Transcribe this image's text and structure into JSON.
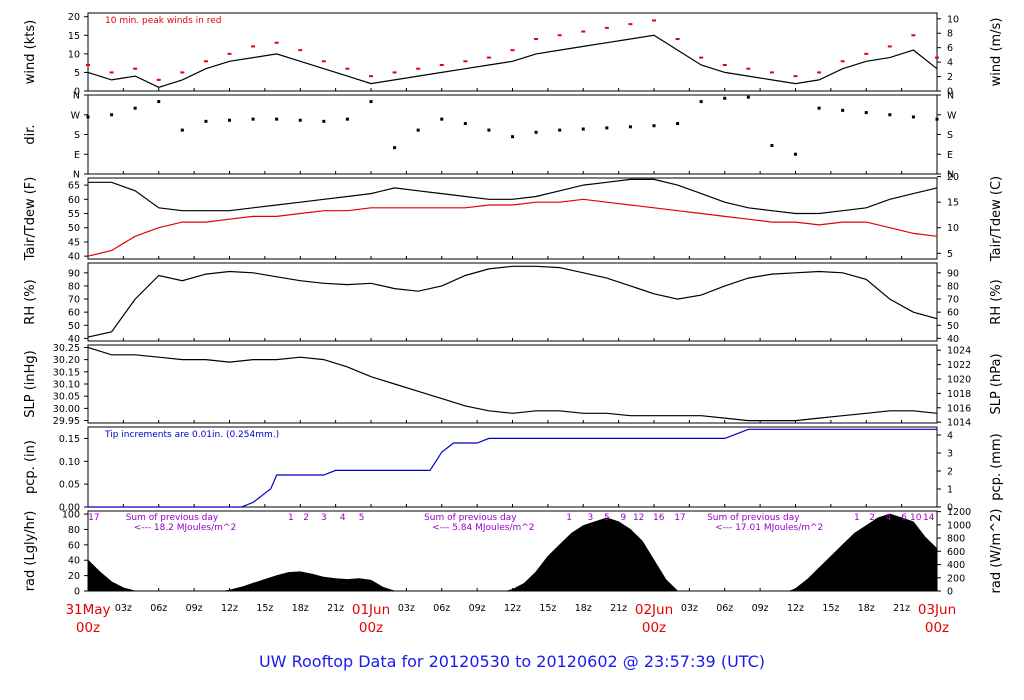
{
  "footer": "UW Rooftop Data for 20120530  to  20120602 @ 23:57:39  (UTC)",
  "colors": {
    "red": "#e60000",
    "blue": "#0000cc",
    "purple": "#9900cc",
    "footer_blue": "#1a1aee"
  },
  "x_axis": {
    "hour_ticks": [
      "03z",
      "06z",
      "09z",
      "12z",
      "15z",
      "18z",
      "21z",
      "01Jun",
      "03z",
      "06z",
      "09z",
      "12z",
      "15z",
      "18z",
      "21z",
      "02Jun",
      "03z",
      "06z",
      "09z",
      "12z",
      "15z",
      "18z",
      "21z",
      "03Jun"
    ],
    "day_ticks": [
      {
        "top": "31May",
        "bottom": "00z",
        "hour": 0
      },
      {
        "top": "01Jun",
        "bottom": "00z",
        "hour": 24
      },
      {
        "top": "02Jun",
        "bottom": "00z",
        "hour": 48
      },
      {
        "top": "03Jun",
        "bottom": "00z",
        "hour": 72
      }
    ],
    "range_hours": [
      0,
      72
    ]
  },
  "chart_data": [
    {
      "type": "line",
      "id": "wind",
      "ylabel_left": "wind (kts)",
      "ylabel_right": "wind (m/s)",
      "yticks_left": [
        "0",
        "5",
        "10",
        "15",
        "20"
      ],
      "yticks_right": [
        "0",
        "2",
        "4",
        "6",
        "8",
        "10"
      ],
      "ylim": [
        0,
        21
      ],
      "annotation": "10 min. peak winds in red",
      "series": [
        {
          "role": "speed",
          "color": "#000000",
          "x": [
            0,
            2,
            4,
            6,
            8,
            10,
            12,
            14,
            16,
            18,
            20,
            22,
            24,
            26,
            28,
            30,
            32,
            34,
            36,
            38,
            40,
            42,
            44,
            46,
            48,
            50,
            52,
            54,
            56,
            58,
            60,
            62,
            64,
            66,
            68,
            70,
            72
          ],
          "values": [
            5,
            3,
            4,
            1,
            3,
            6,
            8,
            9,
            10,
            8,
            6,
            4,
            2,
            3,
            4,
            5,
            6,
            7,
            8,
            10,
            11,
            12,
            13,
            14,
            15,
            11,
            7,
            5,
            4,
            3,
            2,
            3,
            6,
            8,
            9,
            11,
            6
          ]
        },
        {
          "role": "peak",
          "color": "#e60000",
          "x": [
            0,
            2,
            4,
            6,
            8,
            10,
            12,
            14,
            16,
            18,
            20,
            22,
            24,
            26,
            28,
            30,
            32,
            34,
            36,
            38,
            40,
            42,
            44,
            46,
            48,
            50,
            52,
            54,
            56,
            58,
            60,
            62,
            64,
            66,
            68,
            70,
            72
          ],
          "values": [
            7,
            5,
            6,
            3,
            5,
            8,
            10,
            12,
            13,
            11,
            8,
            6,
            4,
            5,
            6,
            7,
            8,
            9,
            11,
            14,
            15,
            16,
            17,
            18,
            19,
            14,
            9,
            7,
            6,
            5,
            4,
            5,
            8,
            10,
            12,
            15,
            9
          ]
        }
      ]
    },
    {
      "type": "scatter",
      "id": "dir",
      "ylabel_left": "dir.",
      "yticks_left": [
        "N",
        "E",
        "S",
        "W",
        "N"
      ],
      "yticks_right": [
        "N",
        "E",
        "S",
        "W",
        "N"
      ],
      "ylim": [
        0,
        360
      ],
      "series": [
        {
          "name": "",
          "color": "#000000",
          "x": [
            0,
            2,
            4,
            6,
            8,
            10,
            12,
            14,
            16,
            18,
            20,
            22,
            24,
            26,
            28,
            30,
            32,
            34,
            36,
            38,
            40,
            42,
            44,
            46,
            48,
            50,
            52,
            54,
            56,
            58,
            60,
            62,
            64,
            66,
            68,
            70,
            72
          ],
          "values": [
            260,
            270,
            300,
            330,
            200,
            240,
            245,
            250,
            250,
            245,
            240,
            250,
            330,
            120,
            200,
            250,
            230,
            200,
            170,
            190,
            200,
            205,
            210,
            215,
            220,
            230,
            330,
            345,
            350,
            130,
            90,
            300,
            290,
            280,
            270,
            260,
            250
          ]
        }
      ]
    },
    {
      "type": "line",
      "id": "temp",
      "ylabel_left": "Tair/Tdew (F)",
      "ylabel_right": "Tair/Tdew (C)",
      "yticks_left": [
        "40",
        "45",
        "50",
        "55",
        "60",
        "65"
      ],
      "yticks_right": [
        "5",
        "10",
        "15",
        "20"
      ],
      "ylim": [
        39,
        67.5
      ],
      "series": [
        {
          "role": "air",
          "color": "#000000",
          "x": [
            0,
            2,
            4,
            6,
            8,
            10,
            12,
            14,
            16,
            18,
            20,
            22,
            24,
            26,
            28,
            30,
            32,
            34,
            36,
            38,
            40,
            42,
            44,
            46,
            48,
            50,
            52,
            54,
            56,
            58,
            60,
            62,
            64,
            66,
            68,
            70,
            72
          ],
          "values": [
            66,
            66,
            63,
            57,
            56,
            56,
            56,
            57,
            58,
            59,
            60,
            61,
            62,
            64,
            63,
            62,
            61,
            60,
            60,
            61,
            63,
            65,
            66,
            67,
            67,
            65,
            62,
            59,
            57,
            56,
            55,
            55,
            56,
            57,
            60,
            62,
            64
          ]
        },
        {
          "role": "dew",
          "color": "#e60000",
          "x": [
            0,
            2,
            4,
            6,
            8,
            10,
            12,
            14,
            16,
            18,
            20,
            22,
            24,
            26,
            28,
            30,
            32,
            34,
            36,
            38,
            40,
            42,
            44,
            46,
            48,
            50,
            52,
            54,
            56,
            58,
            60,
            62,
            64,
            66,
            68,
            70,
            72
          ],
          "values": [
            40,
            42,
            47,
            50,
            52,
            52,
            53,
            54,
            54,
            55,
            56,
            56,
            57,
            57,
            57,
            57,
            57,
            58,
            58,
            59,
            59,
            60,
            59,
            58,
            57,
            56,
            55,
            54,
            53,
            52,
            52,
            51,
            52,
            52,
            50,
            48,
            47
          ]
        }
      ]
    },
    {
      "type": "line",
      "id": "rh",
      "ylabel_left": "RH (%)",
      "ylabel_right": "RH (%)",
      "yticks_left": [
        "40",
        "50",
        "60",
        "70",
        "80",
        "90"
      ],
      "yticks_right": [
        "40",
        "50",
        "60",
        "70",
        "80",
        "90"
      ],
      "ylim": [
        38,
        97.5
      ],
      "series": [
        {
          "role": "rh",
          "color": "#000000",
          "x": [
            0,
            2,
            4,
            6,
            8,
            10,
            12,
            14,
            16,
            18,
            20,
            22,
            24,
            26,
            28,
            30,
            32,
            34,
            36,
            38,
            40,
            42,
            44,
            46,
            48,
            50,
            52,
            54,
            56,
            58,
            60,
            62,
            64,
            66,
            68,
            70,
            72
          ],
          "values": [
            41,
            45,
            70,
            88,
            84,
            89,
            91,
            90,
            87,
            84,
            82,
            81,
            82,
            78,
            76,
            80,
            88,
            93,
            95,
            95,
            94,
            90,
            86,
            80,
            74,
            70,
            73,
            80,
            86,
            89,
            90,
            91,
            90,
            85,
            70,
            60,
            55
          ]
        }
      ]
    },
    {
      "type": "line",
      "id": "slp",
      "ylabel_left": "SLP (inHg)",
      "ylabel_right": "SLP (hPa)",
      "yticks_left": [
        "29.95",
        "30.00",
        "30.05",
        "30.10",
        "30.15",
        "30.20",
        "30.25"
      ],
      "yticks_right": [
        "1014",
        "1016",
        "1018",
        "1020",
        "1022",
        "1024"
      ],
      "ylim": [
        29.94,
        30.26
      ],
      "series": [
        {
          "role": "slp",
          "color": "#000000",
          "x": [
            0,
            2,
            4,
            6,
            8,
            10,
            12,
            14,
            16,
            18,
            20,
            22,
            24,
            26,
            28,
            30,
            32,
            34,
            36,
            38,
            40,
            42,
            44,
            46,
            48,
            50,
            52,
            54,
            56,
            58,
            60,
            62,
            64,
            66,
            68,
            70,
            72
          ],
          "values": [
            30.25,
            30.22,
            30.22,
            30.21,
            30.2,
            30.2,
            30.19,
            30.2,
            30.2,
            30.21,
            30.2,
            30.17,
            30.13,
            30.1,
            30.07,
            30.04,
            30.01,
            29.99,
            29.98,
            29.99,
            29.99,
            29.98,
            29.98,
            29.97,
            29.97,
            29.97,
            29.97,
            29.96,
            29.95,
            29.95,
            29.95,
            29.96,
            29.97,
            29.98,
            29.99,
            29.99,
            29.98
          ]
        }
      ]
    },
    {
      "type": "line",
      "id": "pcp",
      "ylabel_left": "pcp. (in)",
      "ylabel_right": "pcp. (mm)",
      "yticks_left": [
        "0.00",
        "0.05",
        "0.10",
        "0.15"
      ],
      "yticks_right": [
        "0",
        "1",
        "2",
        "3",
        "4"
      ],
      "ylim": [
        0,
        0.175
      ],
      "annotation": "Tip increments are 0.01in. (0.254mm.)",
      "series": [
        {
          "role": "accum",
          "color": "#0000cc",
          "x": [
            0,
            13,
            14,
            14.5,
            15,
            15.5,
            16,
            20,
            21,
            29,
            29.5,
            30,
            31,
            33,
            34,
            46,
            49,
            54,
            55,
            56,
            57,
            72
          ],
          "values": [
            0,
            0,
            0.01,
            0.02,
            0.03,
            0.04,
            0.07,
            0.07,
            0.08,
            0.08,
            0.1,
            0.12,
            0.14,
            0.14,
            0.15,
            0.15,
            0.15,
            0.15,
            0.16,
            0.17,
            0.17,
            0.17
          ]
        }
      ]
    },
    {
      "type": "area",
      "id": "rad",
      "ylabel_left": "rad (Lgly/hr)",
      "ylabel_right": "rad (W/m^2)",
      "yticks_left": [
        "0",
        "20",
        "40",
        "60",
        "80",
        "100"
      ],
      "yticks_right": [
        "0",
        "200",
        "400",
        "600",
        "800",
        "1000",
        "1200"
      ],
      "ylim": [
        0,
        104
      ],
      "day_notes": [
        {
          "line1": "Sum of previous day",
          "line2": "<--- 18.2 MJoules/m^2",
          "hour": 3.2
        },
        {
          "line1": "Sum of previous day",
          "line2": "<--- 5.84 MJoules/m^2",
          "hour": 28.5
        },
        {
          "line1": "Sum of previous day",
          "line2": "<--- 17.01 MJoules/m^2",
          "hour": 52.5
        }
      ],
      "hour_labels": [
        {
          "t": "17",
          "hour": 0.5
        },
        {
          "t": "1",
          "hour": 17.2
        },
        {
          "t": "2",
          "hour": 18.5
        },
        {
          "t": "3",
          "hour": 20.0
        },
        {
          "t": "4",
          "hour": 21.6
        },
        {
          "t": "5",
          "hour": 23.2
        },
        {
          "t": "1",
          "hour": 40.8
        },
        {
          "t": "3",
          "hour": 42.6
        },
        {
          "t": "5",
          "hour": 44.0
        },
        {
          "t": "9",
          "hour": 45.4
        },
        {
          "t": "12",
          "hour": 46.7
        },
        {
          "t": "16",
          "hour": 48.4
        },
        {
          "t": "17",
          "hour": 50.2
        },
        {
          "t": "1",
          "hour": 65.2
        },
        {
          "t": "2",
          "hour": 66.5
        },
        {
          "t": "4",
          "hour": 67.9
        },
        {
          "t": "6",
          "hour": 69.2
        },
        {
          "t": "10",
          "hour": 70.2
        },
        {
          "t": "14",
          "hour": 71.3
        }
      ],
      "series": [
        {
          "role": "rad",
          "color": "#000000",
          "x": [
            0,
            1,
            2,
            3,
            4,
            11.5,
            12,
            13,
            14,
            15,
            16,
            17,
            18,
            19,
            20,
            21,
            22,
            23,
            24,
            25,
            26,
            35.5,
            36,
            37,
            38,
            39,
            40,
            41,
            42,
            43,
            44,
            45,
            46,
            47,
            48,
            49,
            50,
            59.5,
            60,
            61,
            62,
            63,
            64,
            65,
            66,
            67,
            68,
            69,
            70,
            71,
            72
          ],
          "values": [
            40,
            25,
            12,
            4,
            0,
            0,
            1,
            5,
            10,
            15,
            20,
            24,
            25,
            22,
            18,
            16,
            15,
            16,
            14,
            5,
            0,
            0,
            2,
            10,
            25,
            45,
            60,
            75,
            85,
            90,
            95,
            90,
            80,
            65,
            40,
            15,
            0,
            0,
            3,
            15,
            30,
            45,
            60,
            75,
            85,
            95,
            100,
            95,
            90,
            70,
            55
          ]
        }
      ]
    }
  ]
}
